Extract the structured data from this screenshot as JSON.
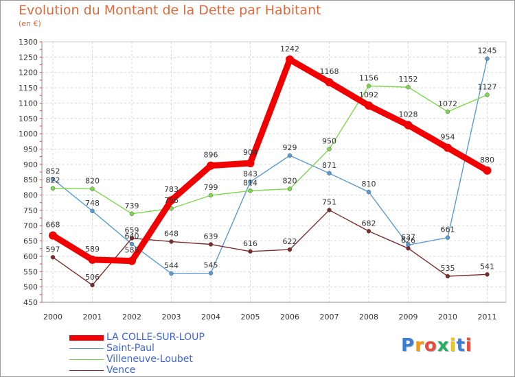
{
  "title": "Evolution du Montant de la Dette par Habitant",
  "subtitle": "(en €)",
  "brand": "Proxiti",
  "chart_data": {
    "type": "line",
    "x": [
      2000,
      2001,
      2002,
      2003,
      2004,
      2005,
      2006,
      2007,
      2008,
      2009,
      2010,
      2011
    ],
    "ylim": [
      450,
      1300
    ],
    "yticks": [
      450,
      500,
      550,
      600,
      650,
      700,
      750,
      800,
      850,
      900,
      950,
      1000,
      1050,
      1100,
      1150,
      1200,
      1250,
      1300
    ],
    "grid": true,
    "legend_position": "bottom-left",
    "series": [
      {
        "name": "LA COLLE-SUR-LOUP",
        "color": "#f00000",
        "values": [
          668,
          589,
          585,
          783,
          896,
          904,
          1242,
          1168,
          1092,
          1028,
          954,
          880
        ],
        "labels": [
          "668",
          "589",
          "585",
          "783",
          "896",
          "904",
          "1242",
          "1168",
          "1092",
          "1028",
          "954",
          "880"
        ]
      },
      {
        "name": "Saint-Paul",
        "color": "#5b9bd5",
        "values": [
          852,
          748,
          640,
          544,
          545,
          843,
          929,
          871,
          810,
          637,
          661,
          1245
        ],
        "labels": [
          "852",
          "748",
          "640",
          "544",
          "545",
          "843",
          "929",
          "871",
          "810",
          "637",
          "661",
          "1245"
        ]
      },
      {
        "name": "Villeneuve-Loubet",
        "color": "#7ed64c",
        "values": [
          822,
          820,
          739,
          756,
          799,
          814,
          820,
          950,
          1156,
          1152,
          1072,
          1127
        ],
        "labels": [
          "822",
          "820",
          "739",
          "756",
          "799",
          "814",
          "820",
          "950",
          "1156",
          "1152",
          "1072",
          "1127"
        ]
      },
      {
        "name": "Vence",
        "color": "#7a2c2c",
        "values": [
          597,
          506,
          659,
          648,
          639,
          616,
          622,
          751,
          682,
          626,
          535,
          541
        ],
        "labels": [
          "597",
          "506",
          "659",
          "648",
          "639",
          "616",
          "622",
          "751",
          "682",
          "626",
          "535",
          "541"
        ]
      }
    ]
  }
}
